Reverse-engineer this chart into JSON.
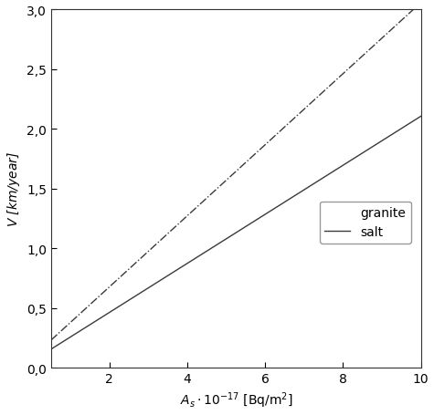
{
  "title": "",
  "ylabel": "V [km/year]",
  "xlabel_text": "A_s",
  "xlim": [
    0.5,
    10
  ],
  "ylim": [
    0.0,
    3.0
  ],
  "xticks": [
    2,
    4,
    6,
    8,
    10
  ],
  "yticks": [
    0.0,
    0.5,
    1.0,
    1.5,
    2.0,
    2.5,
    3.0
  ],
  "granite_slope": 0.297,
  "granite_intercept": 0.085,
  "salt_slope": 0.205,
  "salt_intercept": 0.055,
  "line_color": "#3a3a3a",
  "background_color": "#ffffff",
  "legend_labels": [
    "granite",
    "salt"
  ],
  "figsize": [
    4.75,
    4.56
  ],
  "dpi": 100
}
